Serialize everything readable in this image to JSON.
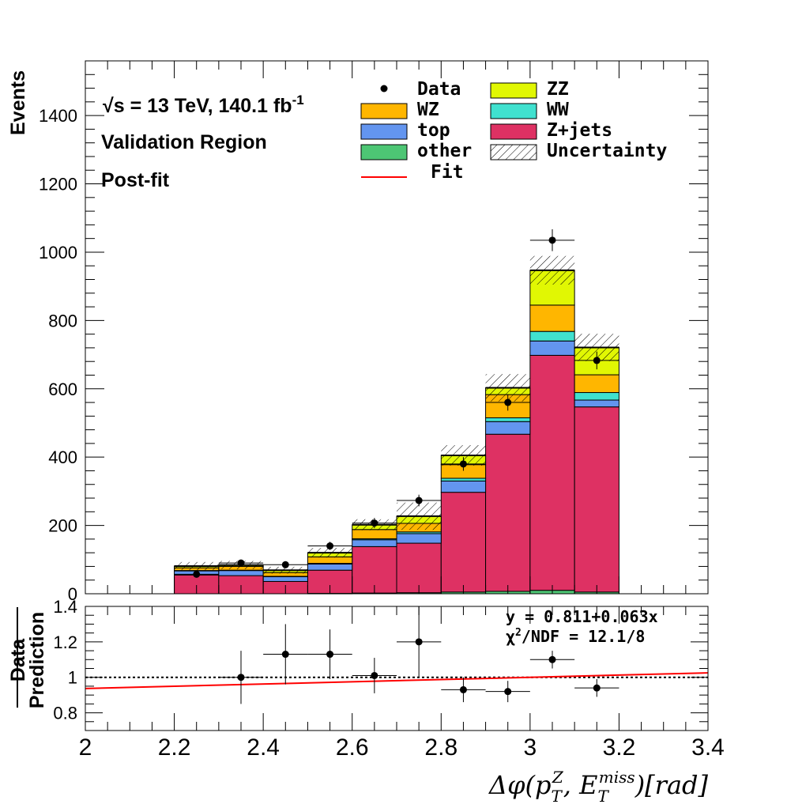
{
  "colors": {
    "wz": "#ffb600",
    "zz": "#e1f703",
    "top": "#6395ef",
    "ww": "#40e1cf",
    "other": "#4dc674",
    "zjets": "#de3163",
    "fit": "#ff0000",
    "data": "#000000"
  },
  "annotations": {
    "sqrt_s_symbol": "√s",
    "energy_text": " = 13 TeV, 140.1 fb",
    "lumi_sup": "-1",
    "region": "Validation Region",
    "fit_state": "Post-fit"
  },
  "fit_info": {
    "equation": "y = 0.811+0.063x",
    "chi2_label": "χ",
    "chi2_sup": "2",
    "chi2_rest": "/NDF = 12.1/8"
  },
  "legend": {
    "data": "Data",
    "zz": "ZZ",
    "wz": "WZ",
    "ww": "WW",
    "top": "top",
    "zjets": "Z+jets",
    "other": "other",
    "uncertainty": "Uncertainty",
    "fit": "Fit"
  },
  "chart_data": [
    {
      "type": "bar",
      "stacked": true,
      "ylabel": "Events",
      "xlabel": "",
      "xlim": [
        2.0,
        3.4
      ],
      "ylim": [
        0,
        1560
      ],
      "bin_edges": [
        2.2,
        2.3,
        2.4,
        2.5,
        2.6,
        2.7,
        2.8,
        2.9,
        3.0,
        3.1,
        3.2
      ],
      "series": [
        {
          "name": "other",
          "color_key": "other",
          "values": [
            0,
            0,
            0,
            1,
            2,
            3,
            5,
            7,
            10,
            5
          ]
        },
        {
          "name": "Z+jets",
          "color_key": "zjets",
          "values": [
            55,
            53,
            36,
            68,
            136,
            145,
            292,
            460,
            688,
            542
          ]
        },
        {
          "name": "top",
          "color_key": "top",
          "values": [
            12,
            15,
            14,
            18,
            20,
            28,
            33,
            37,
            42,
            20
          ]
        },
        {
          "name": "WW",
          "color_key": "ww",
          "values": [
            1,
            1,
            1,
            2,
            3,
            5,
            8,
            11,
            28,
            22
          ]
        },
        {
          "name": "WZ",
          "color_key": "wz",
          "values": [
            8,
            11,
            11,
            19,
            27,
            25,
            40,
            68,
            77,
            52
          ]
        },
        {
          "name": "ZZ",
          "color_key": "zz",
          "values": [
            5,
            4,
            7,
            12,
            14,
            21,
            27,
            20,
            102,
            80
          ]
        }
      ],
      "uncertainty": [
        12,
        12,
        10,
        14,
        16,
        40,
        30,
        40,
        42,
        40
      ],
      "data": {
        "x": [
          2.25,
          2.35,
          2.45,
          2.55,
          2.65,
          2.75,
          2.85,
          2.95,
          3.05,
          3.15
        ],
        "y": [
          57,
          90,
          85,
          140,
          207,
          273,
          380,
          560,
          1035,
          683
        ],
        "yerr": [
          8,
          10,
          10,
          12,
          15,
          17,
          20,
          24,
          32,
          26
        ]
      },
      "yticks": [
        0,
        200,
        400,
        600,
        800,
        1000,
        1200,
        1400
      ]
    },
    {
      "type": "scatter",
      "ylabel_line1": "Data",
      "ylabel_line2": "Prediction",
      "xlabel_delta_phi": "Δφ(p",
      "xlabel_sub_T1": "T",
      "xlabel_sup_Z": "Z",
      "xlabel_sep": ", E",
      "xlabel_sub_T2": "T",
      "xlabel_sup_miss": "miss",
      "xlabel_unit": ")[rad]",
      "xlim": [
        2.0,
        3.4
      ],
      "ylim": [
        0.7,
        1.4
      ],
      "x": [
        2.35,
        2.45,
        2.55,
        2.65,
        2.75,
        2.85,
        2.95,
        3.05,
        3.15
      ],
      "y": [
        1.0,
        1.13,
        1.13,
        1.01,
        1.2,
        0.93,
        0.92,
        1.1,
        0.94
      ],
      "yerr": [
        0.15,
        0.17,
        0.14,
        0.1,
        0.2,
        0.07,
        0.06,
        0.05,
        0.05
      ],
      "reference_line": 1.0,
      "fit_line": {
        "intercept": 0.811,
        "slope": 0.063
      },
      "yticks": [
        "0.8",
        "1",
        "1.2",
        "1.4"
      ],
      "xticks": [
        "2",
        "2.2",
        "2.4",
        "2.6",
        "2.8",
        "3",
        "3.2",
        "3.4"
      ]
    }
  ]
}
